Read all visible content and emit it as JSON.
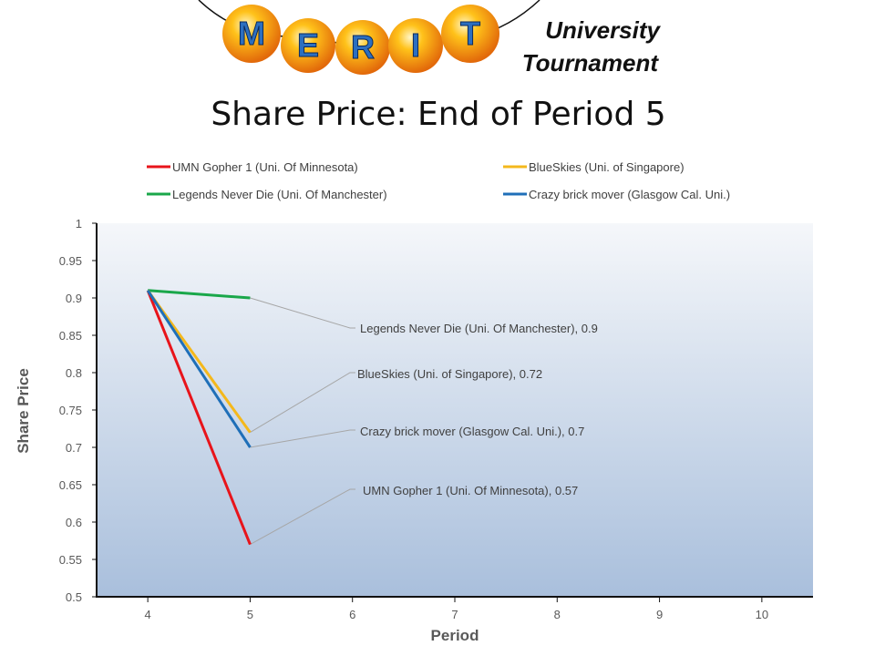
{
  "logo": {
    "letters": [
      "M",
      "E",
      "R",
      "I",
      "T"
    ],
    "subtitle_line1": "University",
    "subtitle_line2": "Tournament"
  },
  "colors": {
    "umn": "#e8141b",
    "blueskies": "#f4b81c",
    "legends": "#1aa74a",
    "crazy": "#1f6fb8",
    "plot_top": "#f5f7fa",
    "plot_bottom": "#a9bfdc"
  },
  "chart_data": {
    "type": "line",
    "title": "Share Price: End of Period 5",
    "xlabel": "Period",
    "ylabel": "Share Price",
    "xlim": [
      3.5,
      10.5
    ],
    "ylim": [
      0.5,
      1
    ],
    "xticks": [
      "4",
      "5",
      "6",
      "7",
      "8",
      "9",
      "10"
    ],
    "yticks": [
      "0.5",
      "0.55",
      "0.6",
      "0.65",
      "0.7",
      "0.75",
      "0.8",
      "0.85",
      "0.9",
      "0.95",
      "1"
    ],
    "legend_position": "top",
    "series": [
      {
        "key": "umn",
        "name": "UMN Gopher 1 (Uni. Of Minnesota)",
        "x": [
          4,
          5
        ],
        "values": [
          0.91,
          0.57
        ],
        "annotation": "UMN Gopher 1 (Uni. Of Minnesota), 0.57"
      },
      {
        "key": "blueskies",
        "name": "BlueSkies (Uni. of Singapore)",
        "x": [
          4,
          5
        ],
        "values": [
          0.91,
          0.72
        ],
        "annotation": "BlueSkies (Uni. of Singapore), 0.72"
      },
      {
        "key": "legends",
        "name": "Legends Never Die (Uni. Of Manchester)",
        "x": [
          4,
          5
        ],
        "values": [
          0.91,
          0.9
        ],
        "annotation": "Legends Never Die (Uni. Of Manchester), 0.9"
      },
      {
        "key": "crazy",
        "name": "Crazy brick mover (Glasgow Cal. Uni.)",
        "x": [
          4,
          5
        ],
        "values": [
          0.91,
          0.7
        ],
        "annotation": "Crazy brick mover  (Glasgow Cal. Uni.), 0.7"
      }
    ]
  }
}
